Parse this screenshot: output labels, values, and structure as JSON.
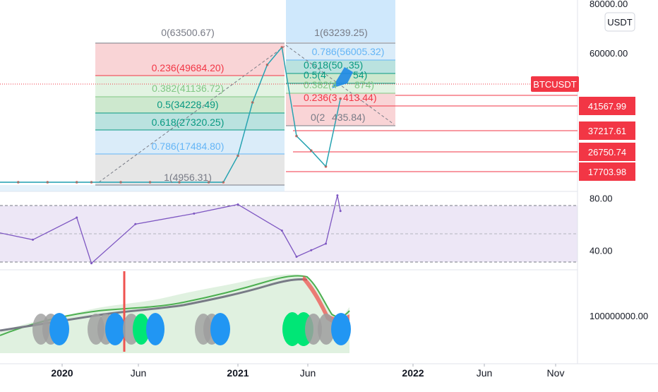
{
  "symbol": "BTCUSDT",
  "currency": "USDT",
  "colors": {
    "price_line": "#26a69a",
    "price_alt": "#ef5350",
    "rsi_line": "#7e57c2",
    "rsi_band": "#ede7f6",
    "alert": "#f23645",
    "fib_gray": "#787b86",
    "fib_red": "#f23645",
    "fib_green": "#81c784",
    "fib_teal": "#089981",
    "fib_blue": "#64b5f6",
    "vol_green": "#4caf50",
    "ma_gray": "#787b86",
    "bubble_blue": "#2196f3",
    "bubble_green": "#00e676",
    "bubble_gray": "#9e9e9e"
  },
  "chart_data": [
    {
      "type": "line",
      "name": "price-pane",
      "scale": "log",
      "ylim": [
        4000,
        85000
      ],
      "y_ticks": [
        "80000.00",
        "60000.00"
      ],
      "x_ticks": [
        "2020",
        "Jun",
        "2021",
        "Jun",
        "2022",
        "Jun",
        "Nov"
      ],
      "series": [
        {
          "x": [
            "2019-08",
            "2019-10",
            "2019-12",
            "2020-02",
            "2020-03",
            "2020-05",
            "2020-07",
            "2020-09",
            "2020-11",
            "2020-12",
            "2021-01",
            "2021-02",
            "2021-03",
            "2021-04",
            "2021-05",
            "2021-06",
            "2021-07",
            "2021-08"
          ],
          "values": [
            10500,
            9200,
            7300,
            9600,
            5500,
            9000,
            9200,
            10800,
            15000,
            21000,
            33000,
            45000,
            56000,
            62000,
            37000,
            34000,
            31000,
            46000
          ]
        }
      ],
      "price_labels": [
        "41567.99",
        "37217.61",
        "26750.74",
        "17703.98"
      ],
      "price_levels": [
        41567.99,
        37217.61,
        26750.74,
        17703.98
      ],
      "fib_retracement_1": {
        "levels": [
          {
            "label": "0(63500.67)",
            "price": 63500.67
          },
          {
            "label": "0.236(49684.20)",
            "price": 49684.2
          },
          {
            "label": "0.382(41136.72)",
            "price": 41136.72
          },
          {
            "label": "0.5(34228.49)",
            "price": 34228.49
          },
          {
            "label": "0.618(27320.25)",
            "price": 27320.25
          },
          {
            "label": "0.786(17484.80)",
            "price": 17484.8
          },
          {
            "label": "1(4956.31)",
            "price": 4956.31
          }
        ]
      },
      "fib_retracement_2": {
        "levels": [
          {
            "label": "1(63239.25)",
            "price": 63239.25
          },
          {
            "label": "0.786(56005.32)",
            "price": 56005.32
          },
          {
            "label": "0.618(50"
          },
          {
            "label": ".35)"
          },
          {
            "label": "0.5(4"
          },
          {
            "label": "54)"
          },
          {
            "label": "0.382(4"
          },
          {
            "label": "874)"
          },
          {
            "label": "0.236(3"
          },
          {
            "label": "413.44)"
          },
          {
            "label": "0(2"
          },
          {
            "label": "435.84)"
          }
        ]
      }
    },
    {
      "type": "line",
      "name": "rsi-pane",
      "ylim": [
        25,
        85
      ],
      "y_ticks": [
        "80.00",
        "40.00"
      ],
      "y_tick_values": [
        80,
        40
      ],
      "x": [
        "2019-08",
        "2019-11",
        "2020-02",
        "2020-03",
        "2020-06",
        "2020-10",
        "2021-01",
        "2021-04",
        "2021-05",
        "2021-06",
        "2021-07",
        "2021-07-25",
        "2021-08"
      ],
      "values": [
        55,
        48,
        65,
        30,
        60,
        68,
        75,
        55,
        35,
        40,
        45,
        82,
        70
      ],
      "bands": [
        70,
        50,
        30
      ]
    },
    {
      "type": "area",
      "name": "volume-pane",
      "y_ticks": [
        "100000000.00"
      ],
      "y_tick_values": [
        100000000
      ]
    }
  ]
}
